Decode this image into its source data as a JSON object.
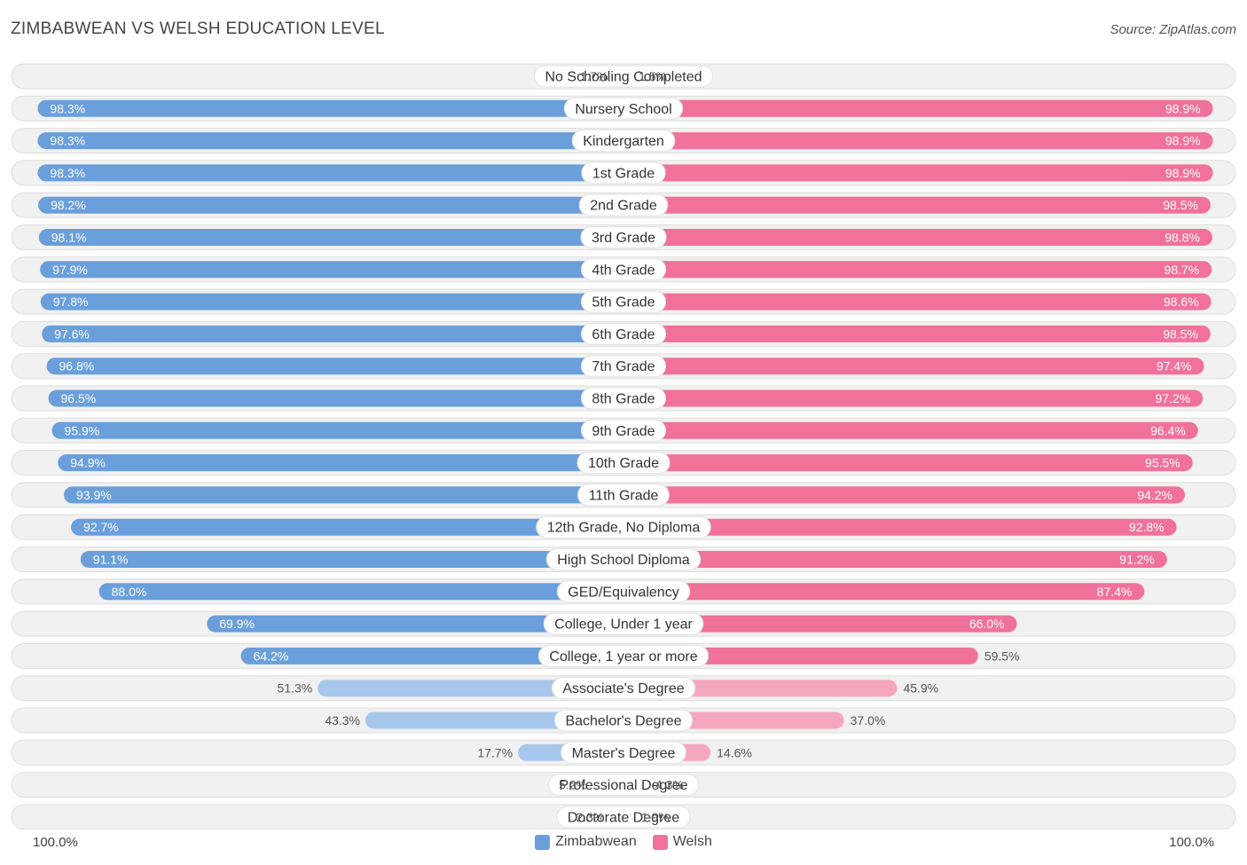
{
  "header": {
    "title": "ZIMBABWEAN VS WELSH EDUCATION LEVEL",
    "source": "Source: ZipAtlas.com"
  },
  "colors": {
    "left_strong": "#6a9fdc",
    "left_light": "#a8c7ec",
    "right_strong": "#f0719a",
    "right_light": "#f5a7c0",
    "row_bg": "#f1f1f1",
    "row_border": "#dedede"
  },
  "axis": {
    "left_label": "100.0%",
    "right_label": "100.0%"
  },
  "legend": [
    {
      "label": "Zimbabwean",
      "color": "#6a9fdc"
    },
    {
      "label": "Welsh",
      "color": "#f0719a"
    }
  ],
  "chart_data": {
    "type": "bar",
    "title": "ZIMBABWEAN VS WELSH EDUCATION LEVEL",
    "xlim": [
      0,
      100
    ],
    "legend_position": "bottom",
    "categories": [
      "No Schooling Completed",
      "Nursery School",
      "Kindergarten",
      "1st Grade",
      "2nd Grade",
      "3rd Grade",
      "4th Grade",
      "5th Grade",
      "6th Grade",
      "7th Grade",
      "8th Grade",
      "9th Grade",
      "10th Grade",
      "11th Grade",
      "12th Grade, No Diploma",
      "High School Diploma",
      "GED/Equivalency",
      "College, Under 1 year",
      "College, 1 year or more",
      "Associate's Degree",
      "Bachelor's Degree",
      "Master's Degree",
      "Professional Degree",
      "Doctorate Degree"
    ],
    "series": [
      {
        "name": "Zimbabwean",
        "values": [
          1.7,
          98.3,
          98.3,
          98.3,
          98.2,
          98.1,
          97.9,
          97.8,
          97.6,
          96.8,
          96.5,
          95.9,
          94.9,
          93.9,
          92.7,
          91.1,
          88.0,
          69.9,
          64.2,
          51.3,
          43.3,
          17.7,
          5.2,
          2.3
        ],
        "labels": [
          "1.7%",
          "98.3%",
          "98.3%",
          "98.3%",
          "98.2%",
          "98.1%",
          "97.9%",
          "97.8%",
          "97.6%",
          "96.8%",
          "96.5%",
          "95.9%",
          "94.9%",
          "93.9%",
          "92.7%",
          "91.1%",
          "88.0%",
          "69.9%",
          "64.2%",
          "51.3%",
          "43.3%",
          "17.7%",
          "5.2%",
          "2.3%"
        ]
      },
      {
        "name": "Welsh",
        "values": [
          1.5,
          98.9,
          98.9,
          98.9,
          98.5,
          98.8,
          98.7,
          98.6,
          98.5,
          97.4,
          97.2,
          96.4,
          95.5,
          94.2,
          92.8,
          91.2,
          87.4,
          66.0,
          59.5,
          45.9,
          37.0,
          14.6,
          4.3,
          1.9
        ],
        "labels": [
          "1.5%",
          "98.9%",
          "98.9%",
          "98.9%",
          "98.5%",
          "98.8%",
          "98.7%",
          "98.6%",
          "98.5%",
          "97.4%",
          "97.2%",
          "96.4%",
          "95.5%",
          "94.2%",
          "92.8%",
          "91.2%",
          "87.4%",
          "66.0%",
          "59.5%",
          "45.9%",
          "37.0%",
          "14.6%",
          "4.3%",
          "1.9%"
        ]
      }
    ]
  }
}
